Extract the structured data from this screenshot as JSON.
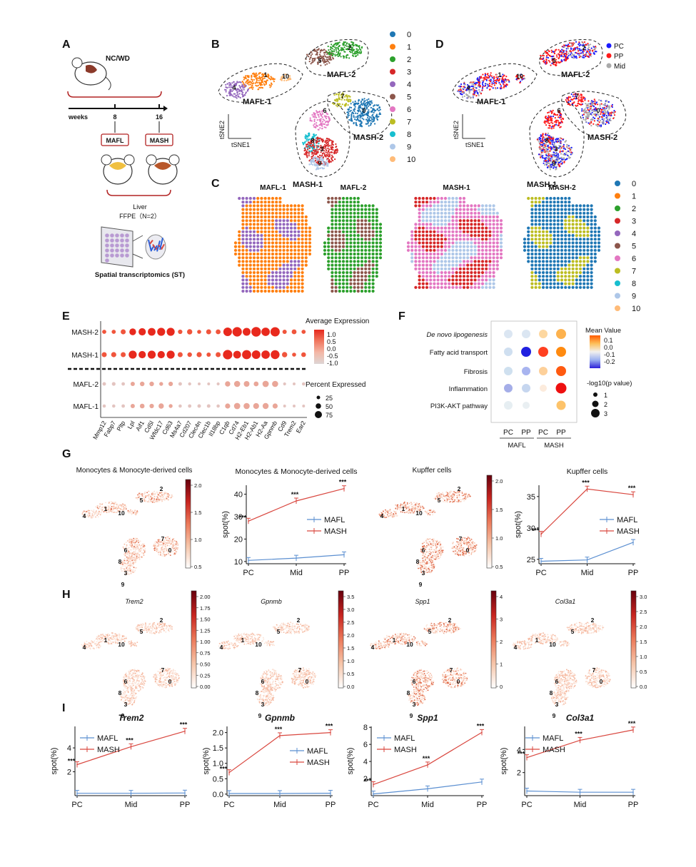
{
  "panels": {
    "A": {
      "letter": "A",
      "diet": "NC/WD",
      "weeks_label": "weeks",
      "t8": "8",
      "t16": "16",
      "mafl": "MAFL",
      "mash": "MASH",
      "liver": "Liver",
      "ffpe": "FFPE（N=2）",
      "st": "Spatial transcriptomics (ST)"
    },
    "B": {
      "letter": "B",
      "groups": [
        "MAFL-1",
        "MAFL-2",
        "MASH-1",
        "MASH-2"
      ],
      "axis_y": "tSNE2",
      "axis_x": "tSNE1",
      "cluster_labels": [
        "0",
        "1",
        "2",
        "3",
        "4",
        "5",
        "6",
        "7",
        "8",
        "9",
        "10"
      ]
    },
    "C": {
      "letter": "C",
      "titles": [
        "MAFL-1",
        "MAFL-2",
        "MASH-1",
        "MASH-2"
      ]
    },
    "D": {
      "letter": "D",
      "legend": [
        "PC",
        "PP",
        "Mid"
      ],
      "groups": [
        "MAFL-1",
        "MAFL-2",
        "MASH-1",
        "MASH-2"
      ],
      "axis_y": "tSNE2",
      "axis_x": "tSNE1"
    },
    "E": {
      "letter": "E",
      "rows": [
        "MASH-2",
        "MASH-1",
        "MAFL-2",
        "MAFL-1"
      ],
      "genes": [
        "Mmp12",
        "Fabp7",
        "Pltp",
        "Lpl",
        "Aif1",
        "Cd5l",
        "Wfdc17",
        "Cd63",
        "Ms4a7",
        "Cd207",
        "Clec4n",
        "Clec1b",
        "Il18bp",
        "C1qb",
        "Cd74",
        "H2-Eb1",
        "H2-Ab1",
        "H2-Aa",
        "Gpnmb",
        "Cd9",
        "Trem2",
        "Ear2"
      ],
      "avg_title": "Average Expression",
      "avg_ticks": [
        "1.0",
        "0.5",
        "0.0",
        "-0.5",
        "-1.0"
      ],
      "pct_title": "Percent Expressed",
      "pct_ticks": [
        "25",
        "50",
        "75"
      ]
    },
    "F": {
      "letter": "F",
      "pathways": [
        "De novo lipogenesis",
        "Fatty acid transport",
        "Fibrosis",
        "Inflammation",
        "PI3K-AKT pathway"
      ],
      "cols": [
        "PC",
        "PP",
        "PC",
        "PP"
      ],
      "groups": [
        "MAFL",
        "MASH"
      ],
      "mean_title": "Mean Value",
      "mean_ticks": [
        "0.1",
        "0.0",
        "-0.1",
        "-0.2"
      ],
      "p_title": "-log10(p value)",
      "p_ticks": [
        "1",
        "2",
        "3"
      ]
    },
    "G": {
      "letter": "G",
      "titles": [
        "Monocytes & Monocyte-derived cells",
        "Monocytes & Monocyte-derived cells",
        "Kupffer cells",
        "Kupffer cells"
      ],
      "cb1_ticks": [
        "2.0",
        "1.5",
        "1.0",
        "0.5"
      ],
      "cb2_ticks": [
        "2.0",
        "1.5",
        "1.0",
        "0.5"
      ]
    },
    "H": {
      "letter": "H",
      "genes": [
        "Trem2",
        "Gpnmb",
        "Spp1",
        "Col3a1"
      ],
      "cb_ticks": [
        [
          "2.00",
          "1.75",
          "1.50",
          "1.25",
          "1.00",
          "0.75",
          "0.50",
          "0.25",
          "0.00"
        ],
        [
          "3.5",
          "3.0",
          "2.5",
          "2.0",
          "1.5",
          "1.0",
          "0.5",
          "0.0"
        ],
        [
          "4",
          "3",
          "2",
          "1",
          "0"
        ],
        [
          "3.0",
          "2.5",
          "2.0",
          "1.5",
          "1.0",
          "0.5",
          "0.0"
        ]
      ]
    },
    "I": {
      "letter": "I"
    }
  },
  "line_charts": [
    {
      "title": "Monocytes & Monocyte-derived cells",
      "x": [
        "PC",
        "Mid",
        "PP"
      ],
      "ylabel": "spot(%)",
      "yticks": [
        "10",
        "20",
        "30",
        "40"
      ],
      "ylim": [
        9,
        44
      ],
      "mafl": [
        10.5,
        11.5,
        13
      ],
      "mash": [
        28,
        37,
        42.5
      ],
      "sig": [
        "***",
        "***",
        "***"
      ],
      "legend": [
        "MAFL",
        "MASH"
      ]
    },
    {
      "title": "Kupffer cells",
      "x": [
        "PC",
        "Mid",
        "PP"
      ],
      "ylabel": "spot(%)",
      "yticks": [
        "25",
        "30",
        "35"
      ],
      "ylim": [
        24.3,
        36.8
      ],
      "mafl": [
        24.7,
        24.9,
        27.7
      ],
      "mash": [
        29,
        36.2,
        35.3
      ],
      "sig": [
        "***",
        "***",
        "***"
      ],
      "legend": [
        "MAFL",
        "MASH"
      ]
    },
    {
      "title": "Trem2",
      "x": [
        "PC",
        "Mid",
        "PP"
      ],
      "ylabel": "spot(%)",
      "yticks": [
        "2",
        "4"
      ],
      "ylim": [
        0,
        5.8
      ],
      "mafl": [
        0.2,
        0.2,
        0.22
      ],
      "mash": [
        2.6,
        4.1,
        5.4
      ],
      "sig": [
        "***",
        "***",
        "***"
      ],
      "legend": [
        "MAFL",
        "MASH"
      ]
    },
    {
      "title": "Gpnmb",
      "x": [
        "PC",
        "Mid",
        "PP"
      ],
      "ylabel": "spot(%)",
      "yticks": [
        "0.0",
        "0.5",
        "1.0",
        "1.5",
        "2.0"
      ],
      "ylim": [
        -0.05,
        2.2
      ],
      "mafl": [
        0.02,
        0.02,
        0.03
      ],
      "mash": [
        0.7,
        1.9,
        2.0
      ],
      "sig": [
        "***",
        "***",
        "***"
      ],
      "legend": [
        "MAFL",
        "MASH"
      ]
    },
    {
      "title": "Spp1",
      "x": [
        "PC",
        "Mid",
        "PP"
      ],
      "ylabel": "spot(%)",
      "yticks": [
        "2",
        "4",
        "6",
        "8"
      ],
      "ylim": [
        0,
        8.1
      ],
      "mafl": [
        0.2,
        0.8,
        1.6
      ],
      "mash": [
        1.3,
        3.6,
        7.4
      ],
      "sig": [
        "***",
        "***",
        "***"
      ],
      "legend": [
        "MAFL",
        "MASH"
      ]
    },
    {
      "title": "Col3a1",
      "x": [
        "PC",
        "Mid",
        "PP"
      ],
      "ylabel": "spot(%)",
      "yticks": [
        "2",
        "4"
      ],
      "ylim": [
        0,
        6
      ],
      "mafl": [
        0.4,
        0.3,
        0.3
      ],
      "mash": [
        3.3,
        4.8,
        5.7
      ],
      "sig": [
        "***",
        "***",
        "***"
      ],
      "legend": [
        "MAFL",
        "MASH"
      ]
    }
  ],
  "colors": {
    "clusters": [
      "#1f77b4",
      "#ff7f0e",
      "#2ca02c",
      "#d62728",
      "#9467bd",
      "#8c564b",
      "#e377c2",
      "#bcbd22",
      "#17becf",
      "#aec7e8",
      "#ffbb78"
    ],
    "pc": "#1a1aff",
    "pp": "#ff1a1a",
    "mid": "#aaaaaa",
    "mafl_line": "#5b8fd1",
    "mash_line": "#d9473f"
  }
}
